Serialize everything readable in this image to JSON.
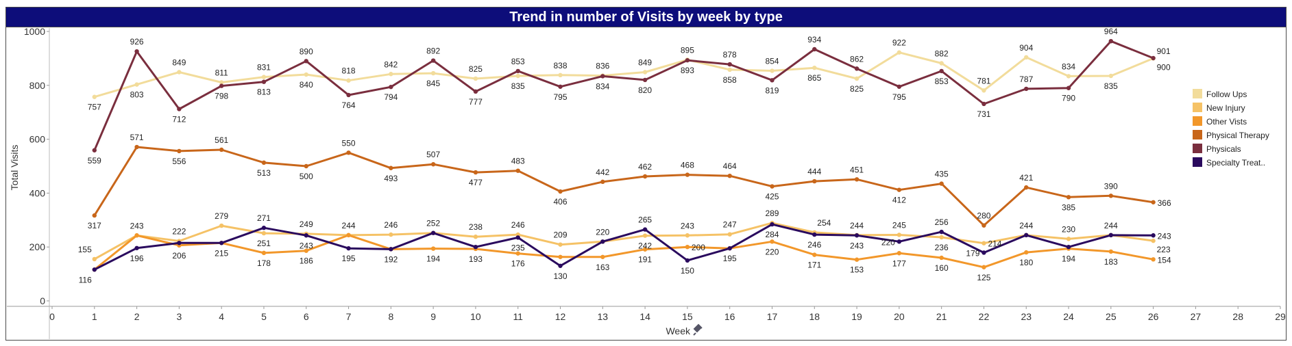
{
  "chart_data": {
    "type": "line",
    "title": "Trend in number of Visits by week by type",
    "xlabel": "Week",
    "ylabel": "Total Visits",
    "x": [
      1,
      2,
      3,
      4,
      5,
      6,
      7,
      8,
      9,
      10,
      11,
      12,
      13,
      14,
      15,
      16,
      17,
      18,
      19,
      20,
      21,
      22,
      23,
      24,
      25,
      26
    ],
    "xlim": [
      0,
      29
    ],
    "ylim": [
      0,
      1000
    ],
    "xticks": [
      0,
      1,
      2,
      3,
      4,
      5,
      6,
      7,
      8,
      9,
      10,
      11,
      12,
      13,
      14,
      15,
      16,
      17,
      18,
      19,
      20,
      21,
      22,
      23,
      24,
      25,
      26,
      27,
      28,
      29
    ],
    "yticks": [
      0,
      200,
      400,
      600,
      800,
      1000
    ],
    "grid": false,
    "legend_position": "right",
    "series": [
      {
        "name": "Follow Ups",
        "color": "#f2dc9b",
        "values": [
          757,
          803,
          849,
          811,
          831,
          840,
          818,
          842,
          845,
          825,
          835,
          838,
          836,
          849,
          895,
          858,
          854,
          865,
          825,
          922,
          882,
          781,
          904,
          834,
          835,
          900
        ]
      },
      {
        "name": "New Injury",
        "color": "#f5c266",
        "values": [
          155,
          243,
          222,
          279,
          251,
          249,
          244,
          246,
          252,
          238,
          246,
          209,
          220,
          242,
          243,
          247,
          289,
          254,
          244,
          245,
          236,
          214,
          244,
          230,
          244,
          223
        ]
      },
      {
        "name": "Other Vists",
        "color": "#f2972a",
        "values": [
          116,
          243,
          206,
          215,
          178,
          186,
          244,
          192,
          194,
          193,
          176,
          163,
          163,
          191,
          200,
          195,
          220,
          171,
          153,
          177,
          160,
          125,
          180,
          194,
          183,
          154
        ]
      },
      {
        "name": "Physical Therapy",
        "color": "#c8661a",
        "values": [
          317,
          571,
          556,
          561,
          513,
          500,
          550,
          493,
          507,
          477,
          483,
          406,
          442,
          462,
          468,
          464,
          425,
          444,
          451,
          412,
          435,
          280,
          421,
          385,
          390,
          366
        ]
      },
      {
        "name": "Physicals",
        "color": "#7a2e3e",
        "values": [
          559,
          926,
          712,
          798,
          813,
          890,
          764,
          794,
          892,
          777,
          853,
          795,
          834,
          820,
          893,
          878,
          819,
          934,
          862,
          795,
          853,
          731,
          787,
          790,
          964,
          901
        ]
      },
      {
        "name": "Specialty Treat..",
        "color": "#2a0a5e",
        "values": [
          116,
          196,
          215,
          215,
          271,
          243,
          195,
          192,
          252,
          200,
          235,
          130,
          220,
          265,
          150,
          195,
          284,
          246,
          243,
          220,
          256,
          179,
          244,
          200,
          244,
          243
        ]
      }
    ],
    "data_labels": [
      {
        "x": 1,
        "y": 757,
        "text": "757",
        "pos": "below"
      },
      {
        "x": 2,
        "y": 803,
        "text": "803",
        "pos": "below"
      },
      {
        "x": 3,
        "y": 849,
        "text": "849",
        "pos": "above"
      },
      {
        "x": 4,
        "y": 811,
        "text": "811",
        "pos": "above"
      },
      {
        "x": 5,
        "y": 831,
        "text": "831",
        "pos": "above"
      },
      {
        "x": 6,
        "y": 840,
        "text": "840",
        "pos": "below"
      },
      {
        "x": 7,
        "y": 818,
        "text": "818",
        "pos": "above"
      },
      {
        "x": 8,
        "y": 842,
        "text": "842",
        "pos": "above"
      },
      {
        "x": 9,
        "y": 845,
        "text": "845",
        "pos": "below"
      },
      {
        "x": 10,
        "y": 825,
        "text": "825",
        "pos": "above"
      },
      {
        "x": 11,
        "y": 835,
        "text": "835",
        "pos": "below"
      },
      {
        "x": 12,
        "y": 838,
        "text": "838",
        "pos": "above"
      },
      {
        "x": 13,
        "y": 836,
        "text": "836",
        "pos": "above"
      },
      {
        "x": 14,
        "y": 849,
        "text": "849",
        "pos": "above"
      },
      {
        "x": 15,
        "y": 895,
        "text": "895",
        "pos": "above"
      },
      {
        "x": 16,
        "y": 858,
        "text": "858",
        "pos": "below"
      },
      {
        "x": 17,
        "y": 854,
        "text": "854",
        "pos": "above"
      },
      {
        "x": 18,
        "y": 865,
        "text": "865",
        "pos": "below"
      },
      {
        "x": 19,
        "y": 825,
        "text": "825",
        "pos": "below"
      },
      {
        "x": 20,
        "y": 922,
        "text": "922",
        "pos": "above"
      },
      {
        "x": 21,
        "y": 882,
        "text": "882",
        "pos": "above"
      },
      {
        "x": 22,
        "y": 781,
        "text": "781",
        "pos": "above"
      },
      {
        "x": 23,
        "y": 904,
        "text": "904",
        "pos": "above"
      },
      {
        "x": 24,
        "y": 834,
        "text": "834",
        "pos": "above"
      },
      {
        "x": 25,
        "y": 835,
        "text": "835",
        "pos": "below"
      },
      {
        "x": 26,
        "y": 900,
        "text": "900",
        "pos": "right-below"
      },
      {
        "x": 1,
        "y": 559,
        "text": "559",
        "pos": "below"
      },
      {
        "x": 2,
        "y": 926,
        "text": "926",
        "pos": "above"
      },
      {
        "x": 3,
        "y": 712,
        "text": "712",
        "pos": "below"
      },
      {
        "x": 4,
        "y": 798,
        "text": "798",
        "pos": "below"
      },
      {
        "x": 5,
        "y": 813,
        "text": "813",
        "pos": "below"
      },
      {
        "x": 6,
        "y": 890,
        "text": "890",
        "pos": "above"
      },
      {
        "x": 7,
        "y": 764,
        "text": "764",
        "pos": "below"
      },
      {
        "x": 8,
        "y": 794,
        "text": "794",
        "pos": "below"
      },
      {
        "x": 9,
        "y": 892,
        "text": "892",
        "pos": "above"
      },
      {
        "x": 10,
        "y": 777,
        "text": "777",
        "pos": "below"
      },
      {
        "x": 11,
        "y": 853,
        "text": "853",
        "pos": "above"
      },
      {
        "x": 12,
        "y": 795,
        "text": "795",
        "pos": "below"
      },
      {
        "x": 13,
        "y": 834,
        "text": "834",
        "pos": "below"
      },
      {
        "x": 14,
        "y": 820,
        "text": "820",
        "pos": "below"
      },
      {
        "x": 15,
        "y": 893,
        "text": "893",
        "pos": "below"
      },
      {
        "x": 16,
        "y": 878,
        "text": "878",
        "pos": "above"
      },
      {
        "x": 17,
        "y": 819,
        "text": "819",
        "pos": "below"
      },
      {
        "x": 18,
        "y": 934,
        "text": "934",
        "pos": "above"
      },
      {
        "x": 19,
        "y": 862,
        "text": "862",
        "pos": "above"
      },
      {
        "x": 20,
        "y": 795,
        "text": "795",
        "pos": "below"
      },
      {
        "x": 21,
        "y": 853,
        "text": "853",
        "pos": "below"
      },
      {
        "x": 22,
        "y": 731,
        "text": "731",
        "pos": "below"
      },
      {
        "x": 23,
        "y": 787,
        "text": "787",
        "pos": "above"
      },
      {
        "x": 24,
        "y": 790,
        "text": "790",
        "pos": "below"
      },
      {
        "x": 25,
        "y": 964,
        "text": "964",
        "pos": "above"
      },
      {
        "x": 26,
        "y": 901,
        "text": "901",
        "pos": "right-above"
      },
      {
        "x": 1,
        "y": 317,
        "text": "317",
        "pos": "below"
      },
      {
        "x": 2,
        "y": 571,
        "text": "571",
        "pos": "above"
      },
      {
        "x": 3,
        "y": 556,
        "text": "556",
        "pos": "below"
      },
      {
        "x": 4,
        "y": 561,
        "text": "561",
        "pos": "above"
      },
      {
        "x": 5,
        "y": 513,
        "text": "513",
        "pos": "below"
      },
      {
        "x": 6,
        "y": 500,
        "text": "500",
        "pos": "below"
      },
      {
        "x": 7,
        "y": 550,
        "text": "550",
        "pos": "above"
      },
      {
        "x": 8,
        "y": 493,
        "text": "493",
        "pos": "below"
      },
      {
        "x": 9,
        "y": 507,
        "text": "507",
        "pos": "above"
      },
      {
        "x": 10,
        "y": 477,
        "text": "477",
        "pos": "below"
      },
      {
        "x": 11,
        "y": 483,
        "text": "483",
        "pos": "above"
      },
      {
        "x": 12,
        "y": 406,
        "text": "406",
        "pos": "below"
      },
      {
        "x": 13,
        "y": 442,
        "text": "442",
        "pos": "above"
      },
      {
        "x": 14,
        "y": 462,
        "text": "462",
        "pos": "above"
      },
      {
        "x": 15,
        "y": 468,
        "text": "468",
        "pos": "above"
      },
      {
        "x": 16,
        "y": 464,
        "text": "464",
        "pos": "above"
      },
      {
        "x": 17,
        "y": 425,
        "text": "425",
        "pos": "below"
      },
      {
        "x": 18,
        "y": 444,
        "text": "444",
        "pos": "above"
      },
      {
        "x": 19,
        "y": 451,
        "text": "451",
        "pos": "above"
      },
      {
        "x": 20,
        "y": 412,
        "text": "412",
        "pos": "below"
      },
      {
        "x": 21,
        "y": 435,
        "text": "435",
        "pos": "above"
      },
      {
        "x": 22,
        "y": 280,
        "text": "280",
        "pos": "above"
      },
      {
        "x": 23,
        "y": 421,
        "text": "421",
        "pos": "above"
      },
      {
        "x": 24,
        "y": 385,
        "text": "385",
        "pos": "below"
      },
      {
        "x": 25,
        "y": 390,
        "text": "390",
        "pos": "above"
      },
      {
        "x": 26,
        "y": 366,
        "text": "366",
        "pos": "right"
      },
      {
        "x": 1,
        "y": 155,
        "text": "155",
        "pos": "above-left"
      },
      {
        "x": 2,
        "y": 243,
        "text": "243",
        "pos": "above"
      },
      {
        "x": 3,
        "y": 222,
        "text": "222",
        "pos": "above"
      },
      {
        "x": 4,
        "y": 279,
        "text": "279",
        "pos": "above"
      },
      {
        "x": 5,
        "y": 271,
        "text": "271",
        "pos": "above"
      },
      {
        "x": 5,
        "y": 251,
        "text": "251",
        "pos": "below"
      },
      {
        "x": 6,
        "y": 249,
        "text": "249",
        "pos": "above"
      },
      {
        "x": 6,
        "y": 243,
        "text": "243",
        "pos": "below"
      },
      {
        "x": 7,
        "y": 244,
        "text": "244",
        "pos": "above"
      },
      {
        "x": 8,
        "y": 246,
        "text": "246",
        "pos": "above"
      },
      {
        "x": 9,
        "y": 252,
        "text": "252",
        "pos": "above"
      },
      {
        "x": 10,
        "y": 238,
        "text": "238",
        "pos": "above"
      },
      {
        "x": 11,
        "y": 246,
        "text": "246",
        "pos": "above"
      },
      {
        "x": 11,
        "y": 235,
        "text": "235",
        "pos": "below"
      },
      {
        "x": 12,
        "y": 209,
        "text": "209",
        "pos": "above"
      },
      {
        "x": 13,
        "y": 220,
        "text": "220",
        "pos": "above"
      },
      {
        "x": 14,
        "y": 265,
        "text": "265",
        "pos": "above"
      },
      {
        "x": 14,
        "y": 242,
        "text": "242",
        "pos": "below"
      },
      {
        "x": 15,
        "y": 243,
        "text": "243",
        "pos": "above"
      },
      {
        "x": 15,
        "y": 200,
        "text": "200",
        "pos": "right"
      },
      {
        "x": 16,
        "y": 247,
        "text": "247",
        "pos": "above"
      },
      {
        "x": 17,
        "y": 289,
        "text": "289",
        "pos": "above"
      },
      {
        "x": 17,
        "y": 284,
        "text": "284",
        "pos": "below"
      },
      {
        "x": 18,
        "y": 254,
        "text": "254",
        "pos": "above-right"
      },
      {
        "x": 18,
        "y": 246,
        "text": "246",
        "pos": "below"
      },
      {
        "x": 19,
        "y": 244,
        "text": "244",
        "pos": "above"
      },
      {
        "x": 19,
        "y": 243,
        "text": "243",
        "pos": "below"
      },
      {
        "x": 20,
        "y": 245,
        "text": "245",
        "pos": "above"
      },
      {
        "x": 20,
        "y": 220,
        "text": "220",
        "pos": "left"
      },
      {
        "x": 21,
        "y": 256,
        "text": "256",
        "pos": "above"
      },
      {
        "x": 21,
        "y": 236,
        "text": "236",
        "pos": "below"
      },
      {
        "x": 22,
        "y": 214,
        "text": "214",
        "pos": "right"
      },
      {
        "x": 22,
        "y": 179,
        "text": "179",
        "pos": "left"
      },
      {
        "x": 23,
        "y": 244,
        "text": "244",
        "pos": "above"
      },
      {
        "x": 24,
        "y": 230,
        "text": "230",
        "pos": "above"
      },
      {
        "x": 25,
        "y": 244,
        "text": "244",
        "pos": "above"
      },
      {
        "x": 26,
        "y": 243,
        "text": "243",
        "pos": "right"
      },
      {
        "x": 26,
        "y": 223,
        "text": "223",
        "pos": "right-below"
      },
      {
        "x": 1,
        "y": 116,
        "text": "116",
        "pos": "below-left"
      },
      {
        "x": 2,
        "y": 196,
        "text": "196",
        "pos": "below"
      },
      {
        "x": 3,
        "y": 206,
        "text": "206",
        "pos": "below"
      },
      {
        "x": 4,
        "y": 215,
        "text": "215",
        "pos": "below"
      },
      {
        "x": 5,
        "y": 178,
        "text": "178",
        "pos": "below"
      },
      {
        "x": 6,
        "y": 186,
        "text": "186",
        "pos": "below"
      },
      {
        "x": 7,
        "y": 195,
        "text": "195",
        "pos": "below"
      },
      {
        "x": 8,
        "y": 192,
        "text": "192",
        "pos": "below"
      },
      {
        "x": 9,
        "y": 194,
        "text": "194",
        "pos": "below"
      },
      {
        "x": 10,
        "y": 193,
        "text": "193",
        "pos": "below"
      },
      {
        "x": 11,
        "y": 176,
        "text": "176",
        "pos": "below"
      },
      {
        "x": 12,
        "y": 130,
        "text": "130",
        "pos": "below"
      },
      {
        "x": 13,
        "y": 163,
        "text": "163",
        "pos": "below"
      },
      {
        "x": 14,
        "y": 191,
        "text": "191",
        "pos": "below"
      },
      {
        "x": 15,
        "y": 150,
        "text": "150",
        "pos": "below"
      },
      {
        "x": 16,
        "y": 195,
        "text": "195",
        "pos": "below"
      },
      {
        "x": 17,
        "y": 220,
        "text": "220",
        "pos": "below"
      },
      {
        "x": 18,
        "y": 171,
        "text": "171",
        "pos": "below"
      },
      {
        "x": 19,
        "y": 153,
        "text": "153",
        "pos": "below"
      },
      {
        "x": 20,
        "y": 177,
        "text": "177",
        "pos": "below"
      },
      {
        "x": 21,
        "y": 160,
        "text": "160",
        "pos": "below"
      },
      {
        "x": 22,
        "y": 125,
        "text": "125",
        "pos": "below"
      },
      {
        "x": 23,
        "y": 180,
        "text": "180",
        "pos": "below"
      },
      {
        "x": 24,
        "y": 194,
        "text": "194",
        "pos": "below"
      },
      {
        "x": 25,
        "y": 183,
        "text": "183",
        "pos": "below"
      },
      {
        "x": 26,
        "y": 154,
        "text": "154",
        "pos": "right"
      }
    ]
  }
}
